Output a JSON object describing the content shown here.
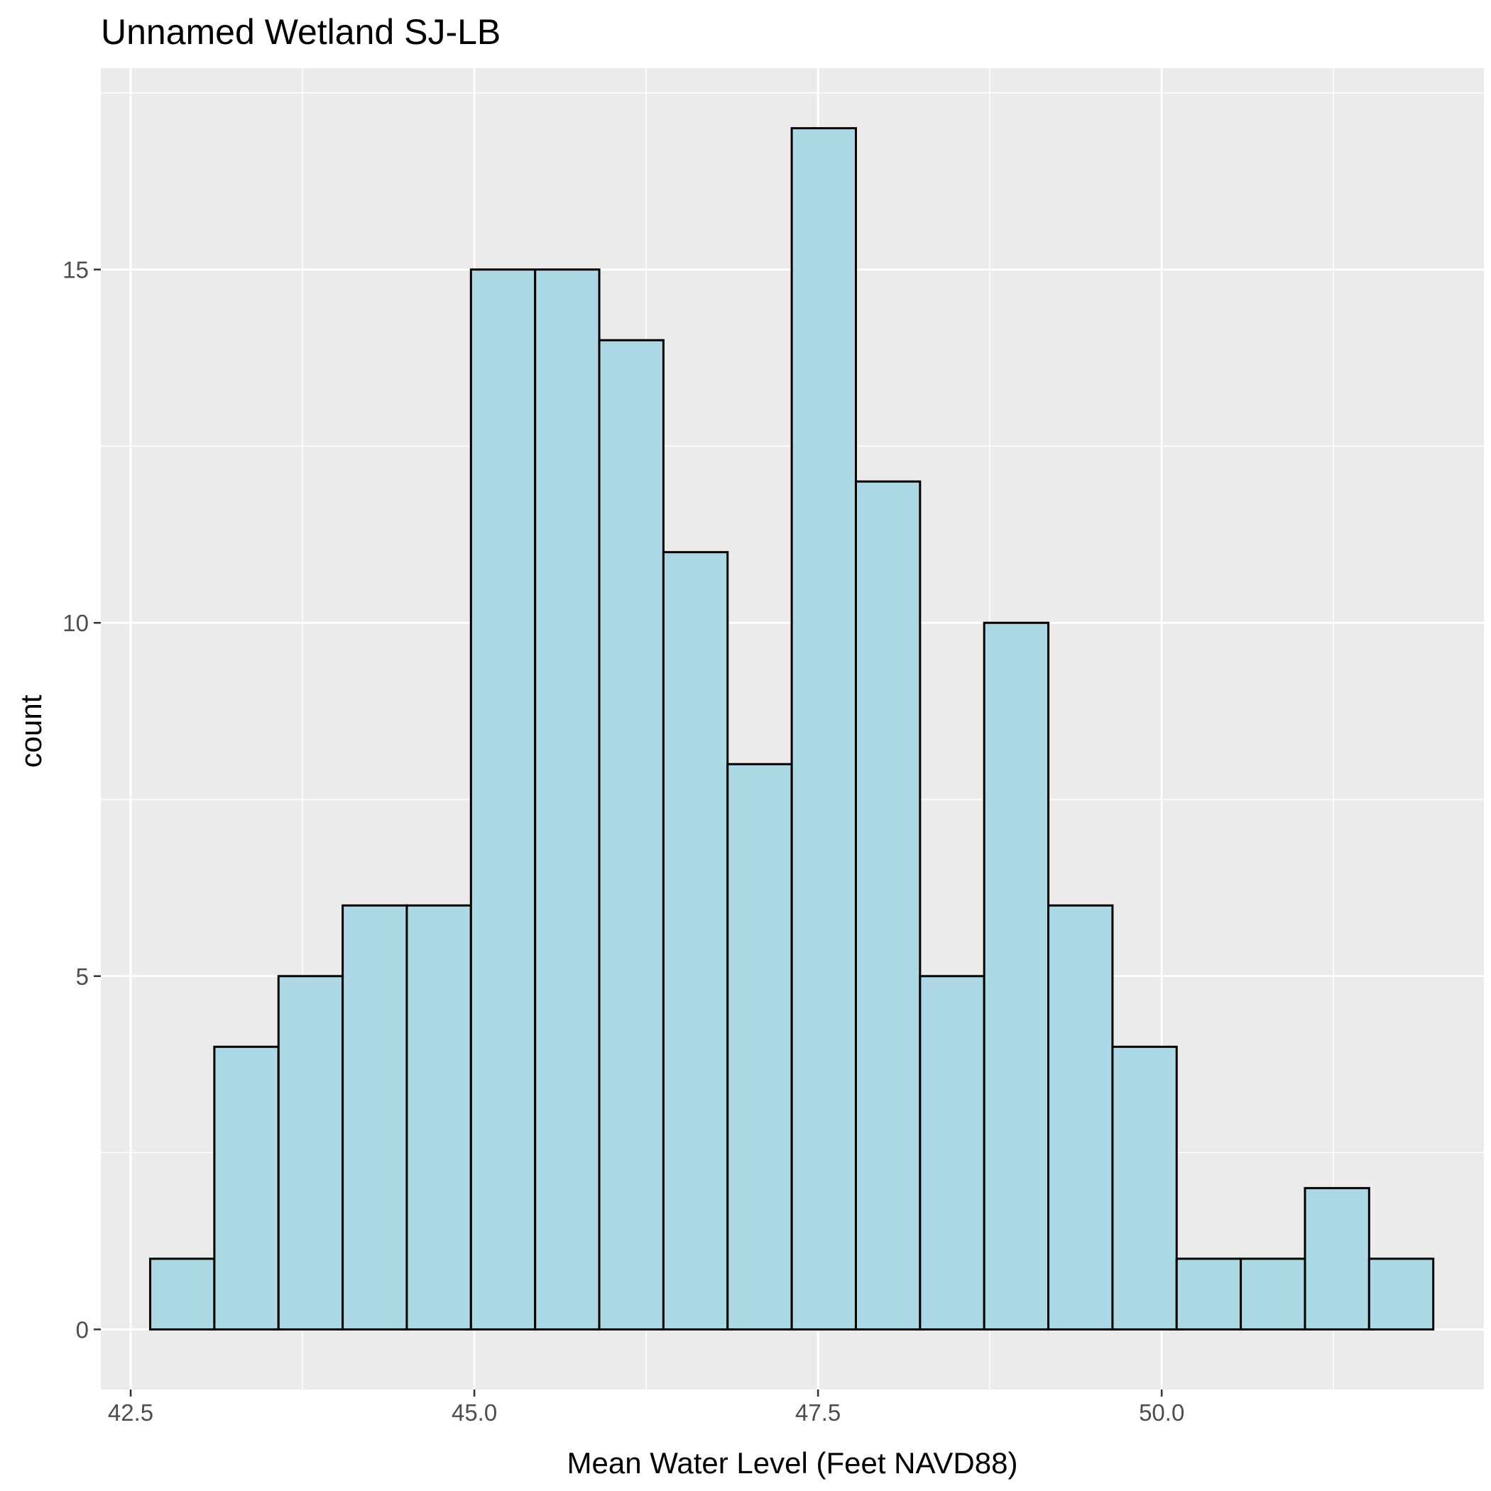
{
  "chart_data": {
    "type": "bar",
    "title": "Unnamed Wetland SJ-LB",
    "xlabel": "Mean Water Level (Feet NAVD88)",
    "ylabel": "count",
    "xlim": [
      42.2829,
      52.3437
    ],
    "ylim": [
      -0.85,
      17.85
    ],
    "x_ticks": [
      42.5,
      45.0,
      47.5,
      50.0
    ],
    "x_tick_labels": [
      "42.5",
      "45.0",
      "47.5",
      "50.0"
    ],
    "y_ticks": [
      0,
      5,
      10,
      15
    ],
    "y_tick_labels": [
      "0",
      "5",
      "10",
      "15"
    ],
    "bin_edges": [
      42.6421,
      43.1087,
      43.5754,
      44.0421,
      44.5087,
      44.9754,
      45.4421,
      45.9087,
      46.3754,
      46.8421,
      47.3087,
      47.7754,
      48.2421,
      48.7087,
      49.1754,
      49.6421,
      50.1087,
      50.5754,
      51.0421,
      51.5087,
      51.9754
    ],
    "values": [
      1,
      4,
      5,
      6,
      6,
      15,
      15,
      14,
      11,
      8,
      17,
      12,
      5,
      10,
      6,
      4,
      1,
      1,
      2,
      1
    ],
    "colors": {
      "fill": "#add8e6",
      "outline": "#000000",
      "panel": "#ebebeb",
      "grid": "#ffffff"
    },
    "grid": true,
    "legend": "none"
  }
}
